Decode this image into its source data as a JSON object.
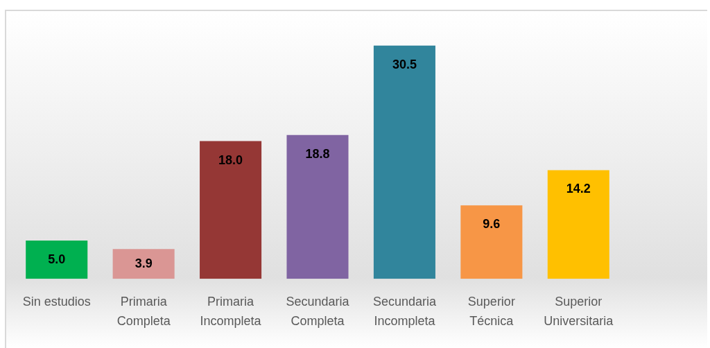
{
  "chart_data": {
    "type": "bar",
    "categories": [
      "Sin estudios",
      "Primaria Completa",
      "Primaria Incompleta",
      "Secundaria Completa",
      "Secundaria Incompleta",
      "Superior Técnica",
      "Superior Universitaria"
    ],
    "values": [
      5.0,
      3.9,
      18.0,
      18.8,
      30.5,
      9.6,
      14.2
    ],
    "colors": [
      "#00b050",
      "#da9694",
      "#953735",
      "#8064a2",
      "#31859c",
      "#f79646",
      "#ffc000"
    ],
    "value_labels": [
      "5.0",
      "3.9",
      "18.0",
      "18.8",
      "30.5",
      "9.6",
      "14.2"
    ],
    "tick_labels": "x"
  }
}
